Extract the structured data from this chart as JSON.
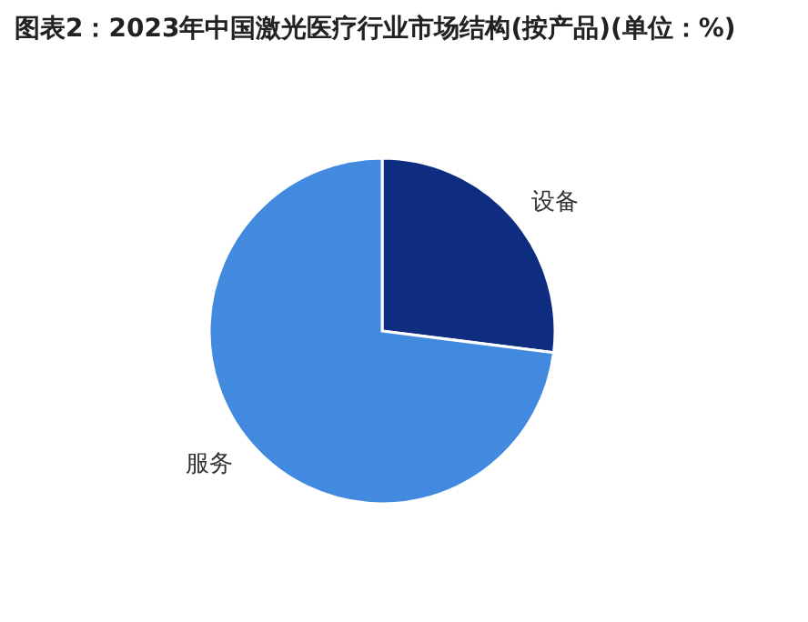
{
  "chart_data": {
    "type": "pie",
    "title": "图表2：2023年中国激光医疗行业市场结构(按产品)(单位：%)",
    "categories": [
      "设备",
      "服务"
    ],
    "values": [
      27,
      73
    ],
    "colors": [
      "#0e2d80",
      "#4289e0"
    ]
  }
}
